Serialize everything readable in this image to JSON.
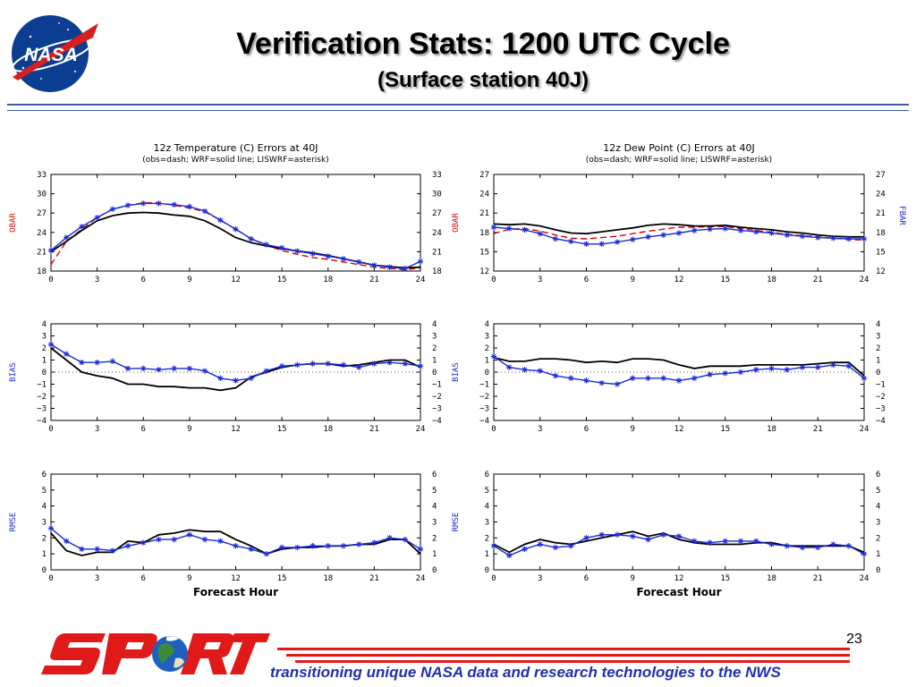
{
  "header": {
    "title": "Verification Stats: 1200 UTC Cycle",
    "subtitle": "(Surface station 40J)",
    "logo_text": "NASA"
  },
  "footer": {
    "page_number": "23",
    "tagline": "transitioning unique NASA data and research technologies to the NWS",
    "brand": "SPoRT"
  },
  "colors": {
    "obs": "#e00000",
    "wrf": "#000000",
    "liswrf": "#1a2ad8",
    "side_label": "#d01010",
    "side_label_blue": "#1a2ad8"
  },
  "chart_data": [
    {
      "type": "line",
      "title": "12z Temperature (C) Errors at 40J",
      "subtitle": "(obs=dash; WRF=solid line; LISWRF=asterisk)",
      "ylabel": "OBAR",
      "ylabel_right": "",
      "xlabel": "",
      "xlim": [
        0,
        24
      ],
      "ylim": [
        18,
        33
      ],
      "xticks": [
        "0",
        "3",
        "6",
        "9",
        "12",
        "15",
        "18",
        "21",
        "24"
      ],
      "yticks": [
        "18",
        "21",
        "24",
        "27",
        "30",
        "33"
      ],
      "x": [
        0,
        1,
        2,
        3,
        4,
        5,
        6,
        7,
        8,
        9,
        10,
        11,
        12,
        13,
        14,
        15,
        16,
        17,
        18,
        19,
        20,
        21,
        22,
        23,
        24
      ],
      "series": [
        {
          "key": "obs",
          "style": "dash",
          "values": [
            19.0,
            22.6,
            24.5,
            26.3,
            27.6,
            28.2,
            28.6,
            28.6,
            28.2,
            27.8,
            27.2,
            25.9,
            24.5,
            23.0,
            22.0,
            21.2,
            20.6,
            20.1,
            19.8,
            19.4,
            19.0,
            18.6,
            18.4,
            18.2,
            18.5
          ]
        },
        {
          "key": "wrf",
          "style": "solid",
          "values": [
            21.0,
            22.6,
            24.3,
            25.8,
            26.6,
            27.0,
            27.1,
            27.0,
            26.7,
            26.5,
            25.8,
            24.6,
            23.2,
            22.4,
            21.9,
            21.5,
            21.1,
            20.8,
            20.4,
            19.9,
            19.4,
            18.9,
            18.7,
            18.5,
            18.6
          ]
        },
        {
          "key": "liswrf",
          "style": "asterisk",
          "values": [
            21.2,
            23.2,
            24.9,
            26.3,
            27.6,
            28.2,
            28.5,
            28.5,
            28.3,
            28.0,
            27.3,
            25.9,
            24.5,
            23.0,
            22.1,
            21.6,
            21.1,
            20.7,
            20.3,
            19.9,
            19.4,
            18.9,
            18.6,
            18.4,
            19.5
          ]
        }
      ]
    },
    {
      "type": "line",
      "title": "12z Dew Point (C) Errors at 40J",
      "subtitle": "(obs=dash; WRF=solid line; LISWRF=asterisk)",
      "ylabel": "OBAR",
      "ylabel_right": "FBAR",
      "xlabel": "",
      "xlim": [
        0,
        24
      ],
      "ylim": [
        12,
        27
      ],
      "xticks": [
        "0",
        "3",
        "6",
        "9",
        "12",
        "15",
        "18",
        "21",
        "24"
      ],
      "yticks": [
        "12",
        "15",
        "18",
        "21",
        "24",
        "27"
      ],
      "x": [
        0,
        1,
        2,
        3,
        4,
        5,
        6,
        7,
        8,
        9,
        10,
        11,
        12,
        13,
        14,
        15,
        16,
        17,
        18,
        19,
        20,
        21,
        22,
        23,
        24
      ],
      "series": [
        {
          "key": "obs",
          "style": "dash",
          "values": [
            17.8,
            18.5,
            18.6,
            18.2,
            17.6,
            17.1,
            17.0,
            17.2,
            17.4,
            17.8,
            18.2,
            18.5,
            18.8,
            18.8,
            18.9,
            18.9,
            18.6,
            18.3,
            18.0,
            17.7,
            17.5,
            17.3,
            17.1,
            16.9,
            16.8
          ]
        },
        {
          "key": "wrf",
          "style": "solid",
          "values": [
            19.3,
            19.2,
            19.3,
            19.0,
            18.4,
            17.9,
            17.8,
            18.1,
            18.4,
            18.7,
            19.1,
            19.3,
            19.2,
            19.0,
            19.0,
            19.1,
            18.8,
            18.6,
            18.4,
            18.1,
            17.9,
            17.6,
            17.4,
            17.3,
            17.3
          ]
        },
        {
          "key": "liswrf",
          "style": "asterisk",
          "values": [
            18.8,
            18.6,
            18.4,
            17.8,
            17.0,
            16.6,
            16.2,
            16.2,
            16.5,
            16.9,
            17.3,
            17.6,
            17.9,
            18.3,
            18.5,
            18.6,
            18.3,
            18.1,
            17.9,
            17.6,
            17.4,
            17.2,
            17.1,
            17.0,
            17.0
          ]
        }
      ]
    },
    {
      "type": "line",
      "title": "",
      "subtitle": "",
      "ylabel": "BIAS",
      "ylabel_right": "",
      "xlabel": "",
      "xlim": [
        0,
        24
      ],
      "ylim": [
        -4,
        4
      ],
      "xticks": [
        "0",
        "3",
        "6",
        "9",
        "12",
        "15",
        "18",
        "21",
        "24"
      ],
      "yticks": [
        "−4",
        "−3",
        "−2",
        "−1",
        "0",
        "1",
        "2",
        "3",
        "4"
      ],
      "zero_line": true,
      "x": [
        0,
        1,
        2,
        3,
        4,
        5,
        6,
        7,
        8,
        9,
        10,
        11,
        12,
        13,
        14,
        15,
        16,
        17,
        18,
        19,
        20,
        21,
        22,
        23,
        24
      ],
      "series": [
        {
          "key": "wrf",
          "style": "solid",
          "values": [
            2.0,
            1.0,
            0.0,
            -0.3,
            -0.5,
            -1.0,
            -1.0,
            -1.2,
            -1.2,
            -1.3,
            -1.3,
            -1.5,
            -1.3,
            -0.4,
            0.0,
            0.4,
            0.6,
            0.7,
            0.7,
            0.5,
            0.6,
            0.8,
            1.0,
            1.0,
            0.4
          ]
        },
        {
          "key": "liswrf",
          "style": "asterisk",
          "values": [
            2.3,
            1.5,
            0.8,
            0.8,
            0.9,
            0.3,
            0.3,
            0.2,
            0.3,
            0.3,
            0.1,
            -0.5,
            -0.7,
            -0.5,
            0.1,
            0.5,
            0.6,
            0.7,
            0.7,
            0.6,
            0.4,
            0.7,
            0.8,
            0.7,
            0.5
          ]
        }
      ]
    },
    {
      "type": "line",
      "title": "",
      "subtitle": "",
      "ylabel": "BIAS",
      "ylabel_right": "",
      "xlabel": "",
      "xlim": [
        0,
        24
      ],
      "ylim": [
        -4,
        4
      ],
      "xticks": [
        "0",
        "3",
        "6",
        "9",
        "12",
        "15",
        "18",
        "21",
        "24"
      ],
      "yticks": [
        "−4",
        "−3",
        "−2",
        "−1",
        "0",
        "1",
        "2",
        "3",
        "4"
      ],
      "zero_line": true,
      "x": [
        0,
        1,
        2,
        3,
        4,
        5,
        6,
        7,
        8,
        9,
        10,
        11,
        12,
        13,
        14,
        15,
        16,
        17,
        18,
        19,
        20,
        21,
        22,
        23,
        24
      ],
      "series": [
        {
          "key": "wrf",
          "style": "solid",
          "values": [
            1.2,
            0.9,
            0.9,
            1.1,
            1.1,
            1.0,
            0.8,
            0.9,
            0.8,
            1.1,
            1.1,
            1.0,
            0.6,
            0.3,
            0.5,
            0.5,
            0.5,
            0.6,
            0.6,
            0.6,
            0.6,
            0.7,
            0.8,
            0.8,
            -0.3
          ]
        },
        {
          "key": "liswrf",
          "style": "asterisk",
          "values": [
            1.3,
            0.4,
            0.2,
            0.1,
            -0.3,
            -0.5,
            -0.7,
            -0.9,
            -1.0,
            -0.5,
            -0.5,
            -0.5,
            -0.7,
            -0.5,
            -0.2,
            -0.1,
            0.0,
            0.2,
            0.3,
            0.2,
            0.4,
            0.4,
            0.6,
            0.5,
            -0.5
          ]
        }
      ]
    },
    {
      "type": "line",
      "title": "",
      "subtitle": "",
      "ylabel": "RMSE",
      "ylabel_right": "",
      "xlabel": "Forecast Hour",
      "xlim": [
        0,
        24
      ],
      "ylim": [
        0,
        6
      ],
      "xticks": [
        "0",
        "3",
        "6",
        "9",
        "12",
        "15",
        "18",
        "21",
        "24"
      ],
      "yticks": [
        "0",
        "1",
        "2",
        "3",
        "4",
        "5",
        "6"
      ],
      "x": [
        0,
        1,
        2,
        3,
        4,
        5,
        6,
        7,
        8,
        9,
        10,
        11,
        12,
        13,
        14,
        15,
        16,
        17,
        18,
        19,
        20,
        21,
        22,
        23,
        24
      ],
      "series": [
        {
          "key": "wrf",
          "style": "solid",
          "values": [
            2.3,
            1.2,
            0.9,
            1.1,
            1.1,
            1.8,
            1.7,
            2.2,
            2.3,
            2.5,
            2.4,
            2.4,
            1.9,
            1.5,
            1.0,
            1.3,
            1.4,
            1.4,
            1.5,
            1.5,
            1.6,
            1.6,
            1.9,
            1.9,
            1.0
          ]
        },
        {
          "key": "liswrf",
          "style": "asterisk",
          "values": [
            2.6,
            1.8,
            1.3,
            1.3,
            1.2,
            1.5,
            1.7,
            1.9,
            1.9,
            2.2,
            1.9,
            1.8,
            1.5,
            1.3,
            1.0,
            1.4,
            1.4,
            1.5,
            1.5,
            1.5,
            1.6,
            1.7,
            2.0,
            1.9,
            1.3
          ]
        }
      ]
    },
    {
      "type": "line",
      "title": "",
      "subtitle": "",
      "ylabel": "RMSE",
      "ylabel_right": "",
      "xlabel": "Forecast Hour",
      "xlim": [
        0,
        24
      ],
      "ylim": [
        0,
        6
      ],
      "xticks": [
        "0",
        "3",
        "6",
        "9",
        "12",
        "15",
        "18",
        "21",
        "24"
      ],
      "yticks": [
        "0",
        "1",
        "2",
        "3",
        "4",
        "5",
        "6"
      ],
      "x": [
        0,
        1,
        2,
        3,
        4,
        5,
        6,
        7,
        8,
        9,
        10,
        11,
        12,
        13,
        14,
        15,
        16,
        17,
        18,
        19,
        20,
        21,
        22,
        23,
        24
      ],
      "series": [
        {
          "key": "wrf",
          "style": "solid",
          "values": [
            1.6,
            1.1,
            1.6,
            1.9,
            1.7,
            1.6,
            1.8,
            2.0,
            2.2,
            2.4,
            2.1,
            2.3,
            1.9,
            1.7,
            1.6,
            1.6,
            1.6,
            1.7,
            1.7,
            1.5,
            1.5,
            1.5,
            1.5,
            1.5,
            1.1
          ]
        },
        {
          "key": "liswrf",
          "style": "asterisk",
          "values": [
            1.5,
            0.9,
            1.3,
            1.6,
            1.4,
            1.5,
            2.0,
            2.2,
            2.2,
            2.1,
            1.9,
            2.2,
            2.1,
            1.8,
            1.7,
            1.8,
            1.8,
            1.8,
            1.6,
            1.5,
            1.4,
            1.4,
            1.6,
            1.5,
            1.0
          ]
        }
      ]
    }
  ]
}
